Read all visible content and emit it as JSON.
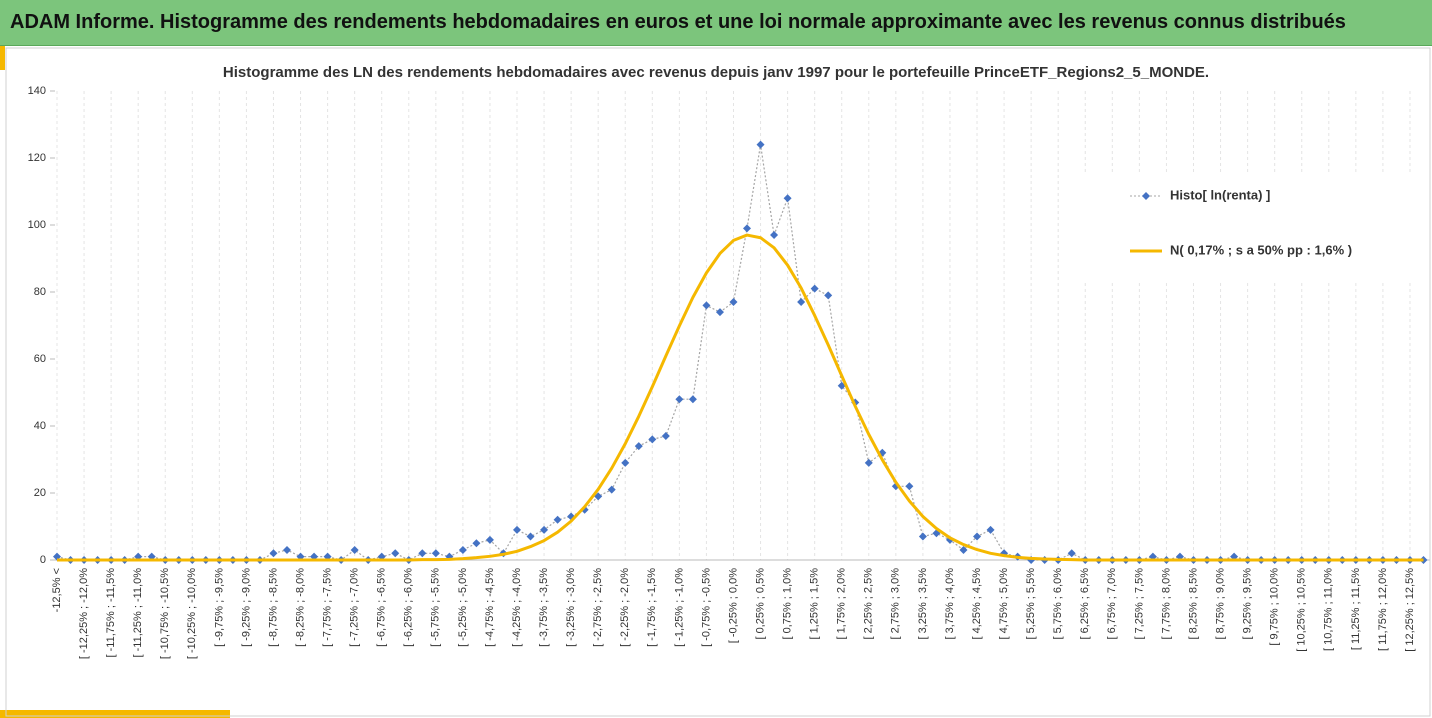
{
  "header": {
    "title": "ADAM Informe. Histogramme des rendements hebdomadaires en euros et une loi normale approximante avec les revenus connus distribués"
  },
  "chart_data": {
    "type": "line",
    "title": "Histogramme des LN des rendements hebdomadaires avec revenus depuis janv 1997 pour le portefeuille PrinceETF_Regions2_5_MONDE.",
    "categories": [
      "-12,5% <",
      null,
      "[ -12,25% ; -12,0%",
      null,
      "[ -11,75% ; -11,5%",
      null,
      "[ -11,25% ; -11,0%",
      null,
      "[ -10,75% ; -10,5%",
      null,
      "[ -10,25% ; -10,0%",
      null,
      "[ -9,75% ; -9,5%",
      null,
      "[ -9,25% ; -9,0%",
      null,
      "[ -8,75% ; -8,5%",
      null,
      "[ -8,25% ; -8,0%",
      null,
      "[ -7,75% ; -7,5%",
      null,
      "[ -7,25% ; -7,0%",
      null,
      "[ -6,75% ; -6,5%",
      null,
      "[ -6,25% ; -6,0%",
      null,
      "[ -5,75% ; -5,5%",
      null,
      "[ -5,25% ; -5,0%",
      null,
      "[ -4,75% ; -4,5%",
      null,
      "[ -4,25% ; -4,0%",
      null,
      "[ -3,75% ; -3,5%",
      null,
      "[ -3,25% ; -3,0%",
      null,
      "[ -2,75% ; -2,5%",
      null,
      "[ -2,25% ; -2,0%",
      null,
      "[ -1,75% ; -1,5%",
      null,
      "[ -1,25% ; -1,0%",
      null,
      "[ -0,75% ; -0,5%",
      null,
      "[ -0,25% ; 0,0%",
      null,
      "[ 0,25% ; 0,5%",
      null,
      "[ 0,75% ; 1,0%",
      null,
      "[ 1,25% ; 1,5%",
      null,
      "[ 1,75% ; 2,0%",
      null,
      "[ 2,25% ; 2,5%",
      null,
      "[ 2,75% ; 3,0%",
      null,
      "[ 3,25% ; 3,5%",
      null,
      "[ 3,75% ; 4,0%",
      null,
      "[ 4,25% ; 4,5%",
      null,
      "[ 4,75% ; 5,0%",
      null,
      "[ 5,25% ; 5,5%",
      null,
      "[ 5,75% ; 6,0%",
      null,
      "[ 6,25% ; 6,5%",
      null,
      "[ 6,75% ; 7,0%",
      null,
      "[ 7,25% ; 7,5%",
      null,
      "[ 7,75% ; 8,0%",
      null,
      "[ 8,25% ; 8,5%",
      null,
      "[ 8,75% ; 9,0%",
      null,
      "[ 9,25% ; 9,5%",
      null,
      "[ 9,75% ; 10,0%",
      null,
      "[ 10,25% ; 10,5%",
      null,
      "[ 10,75% ; 11,0%",
      null,
      "[ 11,25% ; 11,5%",
      null,
      "[ 11,75% ; 12,0%",
      null,
      "[ 12,25% ; 12,5%",
      null
    ],
    "series": [
      {
        "name": "Histo[ ln(renta) ]",
        "color": "#4472c4",
        "line_color": "#a5a5a5",
        "marker": "diamond",
        "values": [
          1,
          0,
          0,
          0,
          0,
          0,
          1,
          1,
          0,
          0,
          0,
          0,
          0,
          0,
          0,
          0,
          2,
          3,
          1,
          1,
          1,
          0,
          3,
          0,
          1,
          2,
          0,
          2,
          2,
          1,
          3,
          5,
          6,
          2,
          9,
          7,
          9,
          12,
          13,
          15,
          19,
          21,
          29,
          34,
          36,
          37,
          48,
          48,
          76,
          74,
          77,
          99,
          124,
          97,
          108,
          77,
          81,
          79,
          52,
          47,
          29,
          32,
          22,
          22,
          7,
          8,
          6,
          3,
          7,
          9,
          2,
          1,
          0,
          0,
          0,
          2,
          0,
          0,
          0,
          0,
          0,
          1,
          0,
          1,
          0,
          0,
          0,
          1,
          0,
          0,
          0,
          0,
          0,
          0,
          0,
          0,
          0,
          0,
          0,
          0,
          0,
          0
        ]
      },
      {
        "name": "N( 0,17% ; s a 50% pp : 1,6% )",
        "color": "#f5b800",
        "line_color": "#f5b800",
        "values": [
          0,
          0,
          0,
          0,
          0,
          0,
          0,
          0,
          0,
          0,
          0,
          0,
          0,
          0,
          0,
          0,
          0,
          0,
          0,
          0,
          0,
          0,
          0,
          0,
          0,
          0,
          0,
          0.1,
          0.1,
          0.2,
          0.4,
          0.7,
          1.1,
          1.7,
          2.6,
          4.0,
          5.8,
          8.3,
          11.6,
          15.9,
          21.1,
          27.4,
          34.7,
          42.9,
          51.7,
          60.9,
          69.9,
          78.4,
          85.7,
          91.5,
          95.4,
          97.0,
          96.2,
          93.2,
          88.0,
          81.2,
          73.0,
          64.2,
          55.0,
          45.9,
          37.5,
          29.9,
          23.2,
          17.6,
          13.0,
          9.4,
          6.6,
          4.6,
          3.1,
          2.0,
          1.3,
          0.8,
          0.5,
          0.3,
          0.2,
          0.1,
          0,
          0,
          0,
          0,
          0,
          0,
          0,
          0,
          0,
          0,
          0,
          0,
          0,
          0,
          0,
          0,
          0,
          0,
          0,
          0,
          0,
          0,
          0,
          0,
          0,
          0
        ]
      }
    ],
    "ylim": [
      0,
      140
    ],
    "yticks": [
      0,
      20,
      40,
      60,
      80,
      100,
      120,
      140
    ],
    "legend": "right"
  }
}
